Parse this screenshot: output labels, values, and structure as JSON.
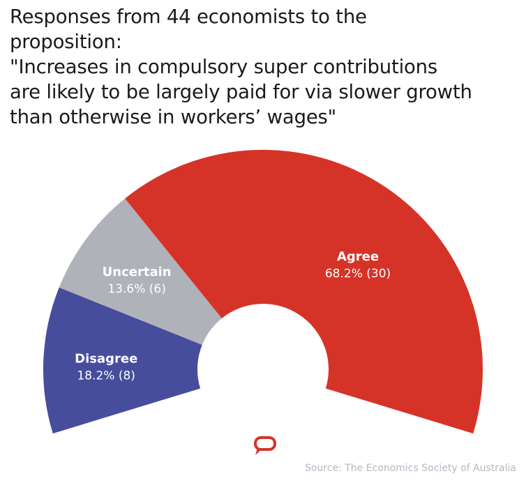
{
  "title_lines": [
    "Responses from 44 economists to the",
    "proposition:",
    "\"Increases in compulsory super contributions",
    "are likely to be largely paid for via slower growth",
    "than otherwise in workers’ wages\""
  ],
  "chart_data": {
    "type": "pie",
    "variant": "partial-donut",
    "title": "Responses from 44 economists to the proposition: \"Increases in compulsory super contributions are likely to be largely paid for via slower growth than otherwise in workers’ wages\"",
    "total": 44,
    "categories": [
      "Disagree",
      "Uncertain",
      "Agree"
    ],
    "values": [
      8,
      6,
      30
    ],
    "percent": [
      18.2,
      13.6,
      68.2
    ],
    "labels": [
      "18.2% (8)",
      "13.6% (6)",
      "68.2% (30)"
    ],
    "colors": [
      "#454d9c",
      "#b0b2b9",
      "#d63328"
    ],
    "legend": "none"
  },
  "source": "Source: The Economics Society of Australia",
  "logo": {
    "name": "speech-bubble-logo-icon",
    "color": "#d63328"
  }
}
